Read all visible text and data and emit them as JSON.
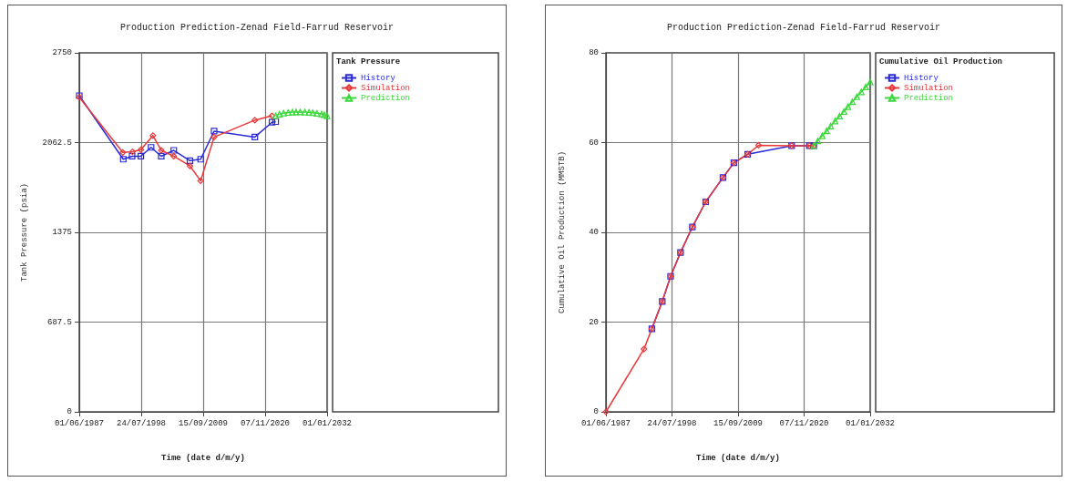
{
  "chart_data": [
    {
      "type": "line",
      "title": "Production Prediction-Zenad Field-Farrud Reservoir",
      "xlabel": "Time (date d/m/y)",
      "ylabel": "Tank Pressure (psia)",
      "legend_title": "Tank Pressure",
      "legend": "right",
      "grid": true,
      "xlim": [
        "1987-06-01",
        "2032-01-01"
      ],
      "xticks": [
        {
          "value": "1987-06-01",
          "label": "01/06/1987"
        },
        {
          "value": "1998-07-24",
          "label": "24/07/1998"
        },
        {
          "value": "2009-09-15",
          "label": "15/09/2009"
        },
        {
          "value": "2020-11-07",
          "label": "07/11/2020"
        },
        {
          "value": "2032-01-01",
          "label": "01/01/2032"
        }
      ],
      "ylim": [
        0,
        2750
      ],
      "yticks": [
        0,
        687.5,
        1375,
        2062.5,
        2750
      ],
      "series": [
        {
          "name": "History",
          "color": "#2a2ad8",
          "marker": "square",
          "x": [
            "1987-06",
            "1995-05",
            "1996-12",
            "1998-07",
            "2000-05",
            "2002-03",
            "2004-06",
            "2007-05",
            "2009-04",
            "2011-09",
            "2019-01",
            "2022-02",
            "2022-10"
          ],
          "values": [
            2422,
            1935,
            1958,
            1958,
            2026,
            1958,
            2003,
            1924,
            1935,
            2150,
            2105,
            2218,
            2223
          ]
        },
        {
          "name": "Simulation",
          "color": "#e8383a",
          "marker": "diamond",
          "x": [
            "1987-06",
            "1995-04",
            "1997-01",
            "1998-07",
            "2000-09",
            "2002-03",
            "2004-06",
            "2007-05",
            "2009-04",
            "2011-09",
            "2019-01",
            "2022-02"
          ],
          "values": [
            2410,
            1987,
            1992,
            2008,
            2116,
            2003,
            1958,
            1883,
            1770,
            2105,
            2234,
            2268
          ]
        },
        {
          "name": "Prediction",
          "color": "#3ad83a",
          "marker": "triangle",
          "x": [
            "2022-10",
            "2023-06",
            "2024-03",
            "2025-01",
            "2025-10",
            "2026-06",
            "2027-03",
            "2028-01",
            "2028-10",
            "2029-06",
            "2030-03",
            "2031-01",
            "2031-07",
            "2032-01"
          ],
          "values": [
            2268,
            2280,
            2288,
            2293,
            2296,
            2297,
            2297,
            2296,
            2294,
            2291,
            2287,
            2282,
            2276,
            2268
          ]
        }
      ]
    },
    {
      "type": "line",
      "title": "Production Prediction-Zenad Field-Farrud Reservoir",
      "xlabel": "Time (date d/m/y)",
      "ylabel": "Cumulative Oil Production (MMSTB)",
      "legend_title": "Cumulative Oil Production",
      "legend": "right",
      "grid": true,
      "xlim": [
        "1987-06-01",
        "2032-01-01"
      ],
      "xticks": [
        {
          "value": "1987-06-01",
          "label": "01/06/1987"
        },
        {
          "value": "1998-07-24",
          "label": "24/07/1998"
        },
        {
          "value": "2009-09-15",
          "label": "15/09/2009"
        },
        {
          "value": "2020-11-07",
          "label": "07/11/2020"
        },
        {
          "value": "2032-01-01",
          "label": "01/01/2032"
        }
      ],
      "ylim": [
        0,
        80
      ],
      "yticks": [
        0,
        20,
        40,
        60,
        80
      ],
      "series": [
        {
          "name": "History",
          "color": "#2a2ad8",
          "marker": "square",
          "x": [
            "1995-03",
            "1996-12",
            "1998-05",
            "2000-01",
            "2002-01",
            "2004-04",
            "2007-03",
            "2009-01",
            "2011-05",
            "2018-10",
            "2021-10",
            "2022-07"
          ],
          "values": [
            18.5,
            24.6,
            30.2,
            35.5,
            41.2,
            46.8,
            52.2,
            55.5,
            57.4,
            59.3,
            59.3,
            59.3
          ]
        },
        {
          "name": "Simulation",
          "color": "#e8383a",
          "marker": "diamond",
          "x": [
            "1987-06",
            "1993-11",
            "1995-03",
            "1996-12",
            "1998-05",
            "2000-01",
            "2002-01",
            "2004-04",
            "2007-03",
            "2009-01",
            "2011-05",
            "2013-03",
            "2018-10",
            "2021-10",
            "2022-07"
          ],
          "values": [
            0,
            14.0,
            18.5,
            24.6,
            30.2,
            35.5,
            41.2,
            46.8,
            52.2,
            55.5,
            57.4,
            59.4,
            59.3,
            59.3,
            59.3
          ]
        },
        {
          "name": "Prediction",
          "color": "#3ad83a",
          "marker": "triangle",
          "x": [
            "2022-07",
            "2023-03",
            "2023-12",
            "2024-09",
            "2025-05",
            "2026-02",
            "2026-11",
            "2027-08",
            "2028-04",
            "2029-01",
            "2029-10",
            "2030-07",
            "2031-04",
            "2032-01"
          ],
          "values": [
            59.3,
            60.4,
            61.5,
            62.6,
            63.7,
            64.8,
            65.9,
            66.9,
            68.0,
            69.1,
            70.2,
            71.3,
            72.4,
            73.5
          ]
        }
      ]
    }
  ]
}
